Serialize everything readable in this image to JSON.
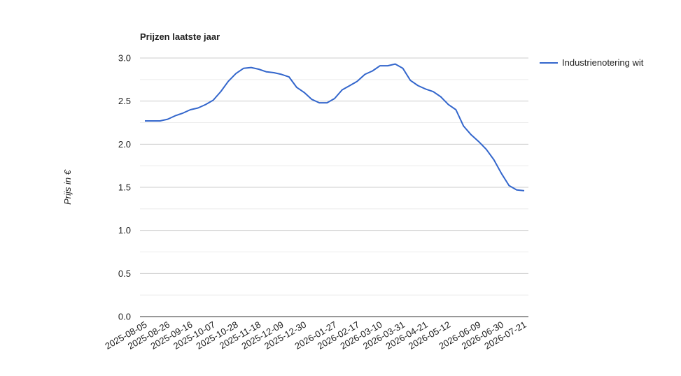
{
  "chart_data": {
    "type": "line",
    "title": "Prijzen laatste jaar",
    "y_label": "Prijs in €",
    "x": [
      "2025-08-05",
      "2025-08-12",
      "2025-08-19",
      "2025-08-26",
      "2025-09-02",
      "2025-09-09",
      "2025-09-16",
      "2025-09-23",
      "2025-09-30",
      "2025-10-07",
      "2025-10-14",
      "2025-10-21",
      "2025-10-28",
      "2025-11-04",
      "2025-11-11",
      "2025-11-18",
      "2025-11-25",
      "2025-12-02",
      "2025-12-09",
      "2025-12-16",
      "2025-12-23",
      "2025-12-30",
      "2026-01-06",
      "2026-01-13",
      "2026-01-20",
      "2026-01-27",
      "2026-02-03",
      "2026-02-10",
      "2026-02-17",
      "2026-02-24",
      "2026-03-03",
      "2026-03-10",
      "2026-03-17",
      "2026-03-24",
      "2026-03-31",
      "2026-04-07",
      "2026-04-14",
      "2026-04-21",
      "2026-04-28",
      "2026-05-05",
      "2026-05-12",
      "2026-05-19",
      "2026-05-26",
      "2026-06-02",
      "2026-06-09",
      "2026-06-16",
      "2026-06-23",
      "2026-06-30",
      "2026-07-07",
      "2026-07-14",
      "2026-07-21"
    ],
    "series": [
      {
        "name": "Industrienotering wit",
        "color": "#3366cc",
        "values": [
          2.27,
          2.27,
          2.27,
          2.29,
          2.33,
          2.36,
          2.4,
          2.42,
          2.46,
          2.51,
          2.61,
          2.73,
          2.82,
          2.88,
          2.89,
          2.87,
          2.84,
          2.83,
          2.81,
          2.78,
          2.66,
          2.6,
          2.52,
          2.48,
          2.48,
          2.53,
          2.63,
          2.68,
          2.73,
          2.81,
          2.85,
          2.91,
          2.91,
          2.93,
          2.88,
          2.74,
          2.68,
          2.64,
          2.61,
          2.55,
          2.46,
          2.4,
          2.21,
          2.11,
          2.03,
          1.94,
          1.82,
          1.66,
          1.52,
          1.47,
          1.46
        ]
      }
    ],
    "xlim": [
      "2025-08-05",
      "2026-07-21"
    ],
    "xticks": [
      "2025-08-05",
      "2025-08-26",
      "2025-09-16",
      "2025-10-07",
      "2025-10-28",
      "2025-11-18",
      "2025-12-09",
      "2025-12-30",
      "2026-01-27",
      "2026-02-17",
      "2026-03-10",
      "2026-03-31",
      "2026-04-21",
      "2026-05-12",
      "2026-06-09",
      "2026-06-30",
      "2026-07-21"
    ],
    "ylim": [
      0,
      3
    ],
    "yticks": [
      {
        "value": 0,
        "label": "0.0"
      },
      {
        "value": 0.5,
        "label": "0.5"
      },
      {
        "value": 1,
        "label": "1.0"
      },
      {
        "value": 1.5,
        "label": "1.5"
      },
      {
        "value": 2,
        "label": "2.0"
      },
      {
        "value": 2.5,
        "label": "2.5"
      },
      {
        "value": 3,
        "label": "3.0"
      }
    ],
    "yminorticks": [
      0.25,
      0.75,
      1.25,
      1.75,
      2.25,
      2.75
    ],
    "grid": true,
    "legend": "right"
  }
}
